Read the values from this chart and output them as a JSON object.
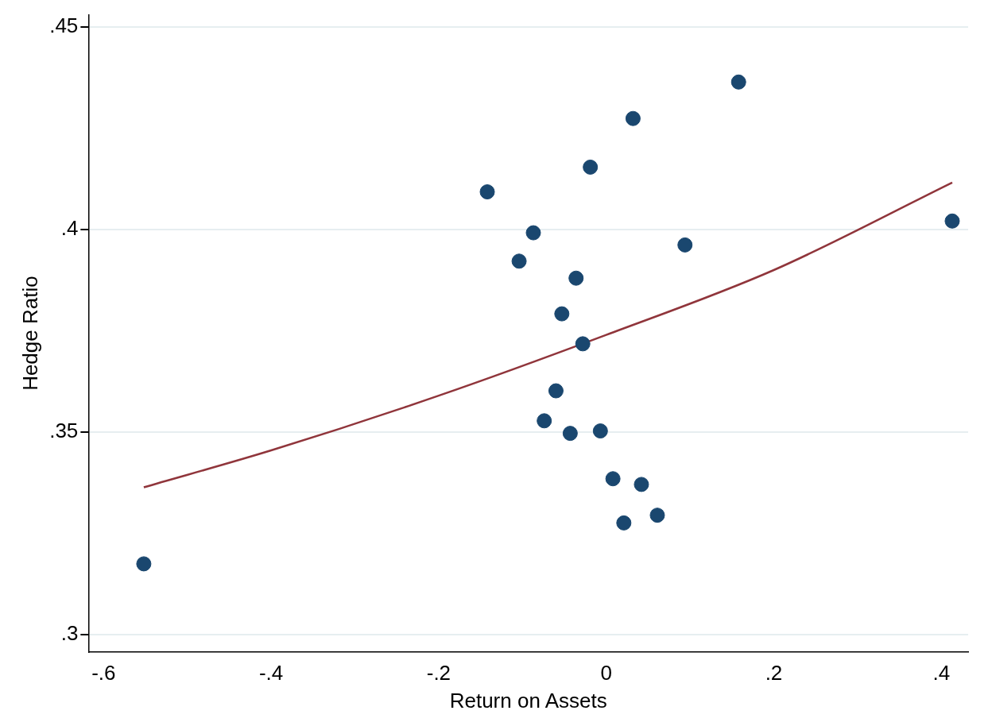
{
  "chart_data": {
    "type": "scatter",
    "xlabel": "Return on Assets",
    "ylabel": "Hedge Ratio",
    "xlim": [
      -0.618,
      0.432
    ],
    "ylim": [
      0.2958,
      0.453
    ],
    "xticks": [
      {
        "value": -0.6,
        "label": "-.6"
      },
      {
        "value": -0.4,
        "label": "-.4"
      },
      {
        "value": -0.2,
        "label": "-.2"
      },
      0,
      {
        "value": 0.2,
        "label": ".2"
      },
      {
        "value": 0.4,
        "label": ".4"
      }
    ],
    "yticks": [
      {
        "value": 0.3,
        "label": ".3"
      },
      {
        "value": 0.35,
        "label": ".35"
      },
      {
        "value": 0.4,
        "label": ".4"
      },
      {
        "value": 0.45,
        "label": ".45"
      }
    ],
    "grid": "y",
    "legend": false,
    "series": [
      {
        "type": "scatter",
        "marker": "circle",
        "color": "#1a476f",
        "x": [
          -0.552,
          -0.142,
          -0.087,
          -0.104,
          -0.019,
          0.032,
          0.158,
          0.413,
          0.094,
          -0.036,
          -0.053,
          -0.028,
          -0.06,
          -0.074,
          -0.043,
          -0.007,
          0.008,
          0.042,
          0.021,
          0.061
        ],
        "values": [
          0.3175,
          0.4093,
          0.3992,
          0.3922,
          0.4154,
          0.4274,
          0.4364,
          0.4021,
          0.3962,
          0.388,
          0.3792,
          0.3718,
          0.3602,
          0.3528,
          0.3497,
          0.3503,
          0.3385,
          0.3371,
          0.3276,
          0.3295
        ]
      },
      {
        "type": "line",
        "marker": "none",
        "color": "#90353b",
        "x": [
          -0.552,
          -0.4,
          -0.2,
          0,
          0.2,
          0.413
        ],
        "values": [
          0.3364,
          0.3455,
          0.359,
          0.374,
          0.39,
          0.4116
        ]
      }
    ]
  }
}
